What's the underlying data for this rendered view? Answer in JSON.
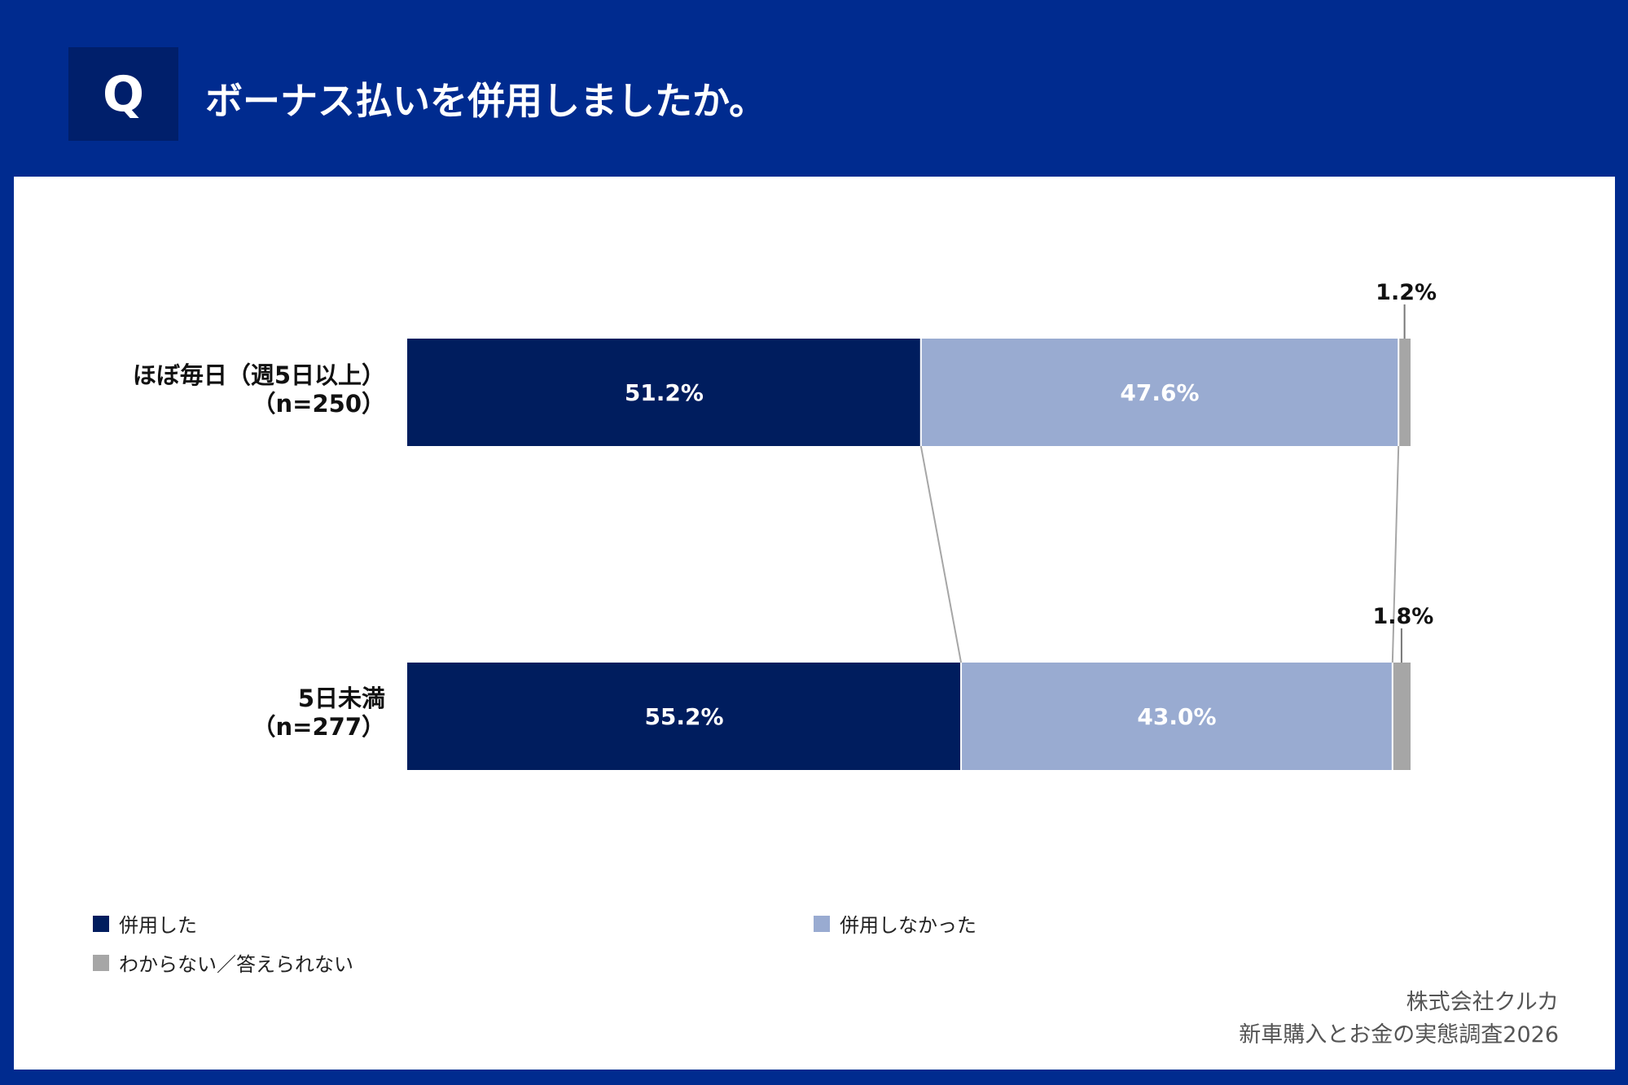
{
  "header": {
    "badge": "Q",
    "question": "ボーナス払いを併用しましたか。"
  },
  "chart_data": {
    "type": "bar",
    "orientation": "horizontal",
    "stacked": true,
    "percent": true,
    "categories": [
      {
        "line1": "ほぼ毎日（週5日以上）",
        "line2": "（n=250）"
      },
      {
        "line1": "5日未満",
        "line2": "（n=277）"
      }
    ],
    "series": [
      {
        "name": "併用した",
        "values": [
          51.2,
          55.2
        ],
        "labels": [
          "51.2%",
          "55.2%"
        ],
        "color": "#001d5e",
        "label_color": "#ffffff"
      },
      {
        "name": "併用しなかった",
        "values": [
          47.6,
          43.0
        ],
        "labels": [
          "47.6%",
          "43.0%"
        ],
        "color": "#99abd1",
        "label_color": "#ffffff"
      },
      {
        "name": "わからない／答えられない",
        "values": [
          1.2,
          1.8
        ],
        "labels": [
          "1.2%",
          "1.8%"
        ],
        "color": "#a6a6a6",
        "label_color": "#111111"
      }
    ],
    "xlim": [
      0,
      100
    ],
    "connector_color": "#a6a6a6"
  },
  "legend": {
    "items": [
      "併用した",
      "併用しなかった",
      "わからない／答えられない"
    ]
  },
  "source": {
    "line1": "株式会社クルカ",
    "line2": "新車購入とお金の実態調査2026"
  }
}
